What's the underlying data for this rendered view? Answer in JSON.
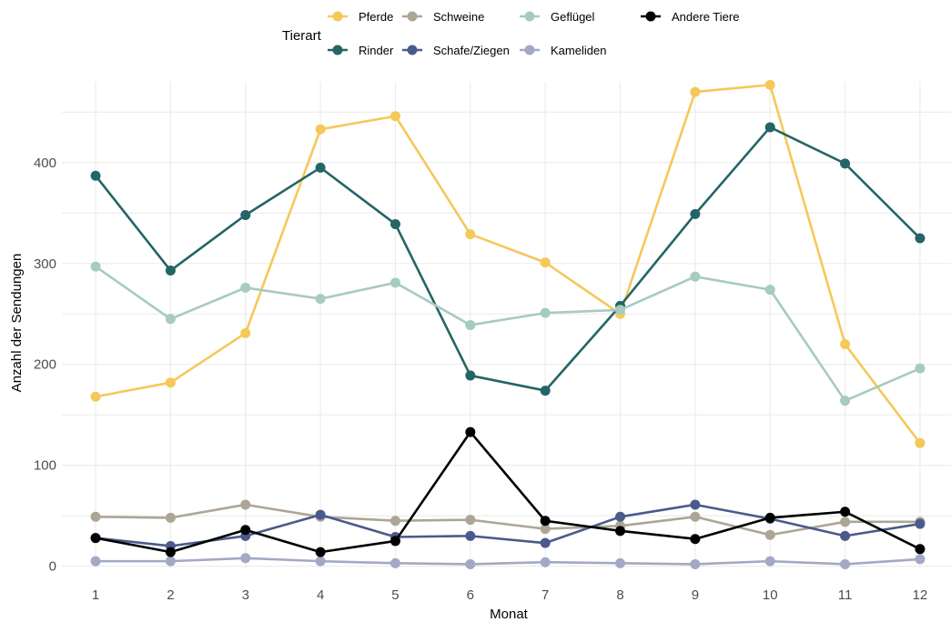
{
  "chart_data": {
    "type": "line",
    "title": "",
    "xlabel": "Monat",
    "ylabel": "Anzahl der Sendungen",
    "legend_title": "Tierart",
    "legend_position": "top",
    "grid": true,
    "x": [
      1,
      2,
      3,
      4,
      5,
      6,
      7,
      8,
      9,
      10,
      11,
      12
    ],
    "x_ticks": [
      "1",
      "2",
      "3",
      "4",
      "5",
      "6",
      "7",
      "8",
      "9",
      "10",
      "11",
      "12"
    ],
    "y_ticks": [
      "0",
      "100",
      "200",
      "300",
      "400"
    ],
    "ylim": [
      -3,
      480
    ],
    "series": [
      {
        "name": "Pferde",
        "color": "#F5C85A",
        "values": [
          168,
          182,
          231,
          433,
          446,
          329,
          301,
          250,
          470,
          477,
          220,
          122
        ]
      },
      {
        "name": "Rinder",
        "color": "#246566",
        "values": [
          387,
          293,
          348,
          395,
          339,
          189,
          174,
          258,
          349,
          435,
          399,
          325
        ]
      },
      {
        "name": "Schweine",
        "color": "#ADA596",
        "values": [
          49,
          48,
          61,
          49,
          45,
          46,
          37,
          40,
          49,
          31,
          44,
          44
        ]
      },
      {
        "name": "Schafe/Ziegen",
        "color": "#4A5A8C",
        "values": [
          28,
          20,
          30,
          51,
          29,
          30,
          23,
          49,
          61,
          47,
          30,
          42
        ]
      },
      {
        "name": "Geflügel",
        "color": "#A7CAC1",
        "values": [
          297,
          245,
          276,
          265,
          281,
          239,
          251,
          254,
          287,
          274,
          164,
          196
        ]
      },
      {
        "name": "Kameliden",
        "color": "#A3A8C5",
        "values": [
          5,
          5,
          8,
          5,
          3,
          2,
          4,
          3,
          2,
          5,
          2,
          7
        ]
      },
      {
        "name": "Andere Tiere",
        "color": "#000000",
        "values": [
          28,
          14,
          36,
          14,
          25,
          133,
          45,
          35,
          27,
          48,
          54,
          17
        ]
      }
    ]
  }
}
